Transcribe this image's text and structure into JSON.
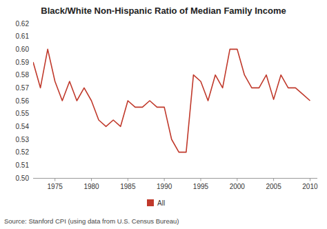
{
  "chart_data": {
    "type": "line",
    "title": "Black/White Non-Hispanic Ratio of Median Family Income",
    "annotations": [
      "Source: Stanford CPI (using data from U.S. Census Bureau)"
    ],
    "x": [
      1972,
      1973,
      1974,
      1975,
      1976,
      1977,
      1978,
      1979,
      1980,
      1981,
      1982,
      1983,
      1984,
      1985,
      1986,
      1987,
      1988,
      1989,
      1990,
      1991,
      1992,
      1993,
      1994,
      1995,
      1996,
      1997,
      1998,
      1999,
      2000,
      2001,
      2002,
      2003,
      2004,
      2005,
      2006,
      2007,
      2008,
      2009,
      2010
    ],
    "series": [
      {
        "name": "All",
        "color": "#c0392b",
        "values": [
          0.59,
          0.57,
          0.6,
          0.575,
          0.56,
          0.575,
          0.56,
          0.57,
          0.56,
          0.545,
          0.54,
          0.545,
          0.54,
          0.56,
          0.555,
          0.555,
          0.56,
          0.555,
          0.555,
          0.53,
          0.52,
          0.52,
          0.58,
          0.575,
          0.56,
          0.58,
          0.57,
          0.6,
          0.6,
          0.58,
          0.57,
          0.57,
          0.58,
          0.561,
          0.58,
          0.57,
          0.57,
          0.565,
          0.56
        ]
      }
    ],
    "xlim": [
      1972,
      2011
    ],
    "xticks": [
      1975,
      1980,
      1985,
      1990,
      1995,
      2000,
      2005,
      2010
    ],
    "ylim": [
      0.5,
      0.62
    ],
    "yticks": [
      {
        "value": 0.5,
        "label": "0.50"
      },
      0.51,
      0.52,
      0.53,
      0.54,
      0.55,
      0.56,
      0.57,
      0.58,
      0.59,
      {
        "value": 0.6,
        "label": "0.60"
      },
      0.61,
      0.62
    ],
    "grid": false,
    "legend": "bottom"
  }
}
